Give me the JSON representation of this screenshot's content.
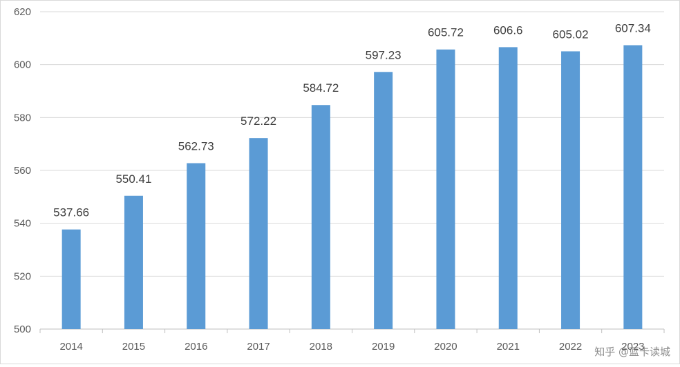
{
  "chart_data": {
    "type": "bar",
    "categories": [
      "2014",
      "2015",
      "2016",
      "2017",
      "2018",
      "2019",
      "2020",
      "2021",
      "2022",
      "2023"
    ],
    "values": [
      537.66,
      550.41,
      562.73,
      572.22,
      584.72,
      597.23,
      605.72,
      606.6,
      605.02,
      607.34
    ],
    "value_labels": [
      "537.66",
      "550.41",
      "562.73",
      "572.22",
      "584.72",
      "597.23",
      "605.72",
      "606.6",
      "605.02",
      "607.34"
    ],
    "yticks": [
      "500",
      "520",
      "540",
      "560",
      "580",
      "600",
      "620"
    ],
    "ylim": [
      500,
      620
    ],
    "grid": true,
    "bar_color": "#5b9bd5",
    "grid_color": "#d9d9d9"
  },
  "watermark": "知乎 @蓝卡读城"
}
